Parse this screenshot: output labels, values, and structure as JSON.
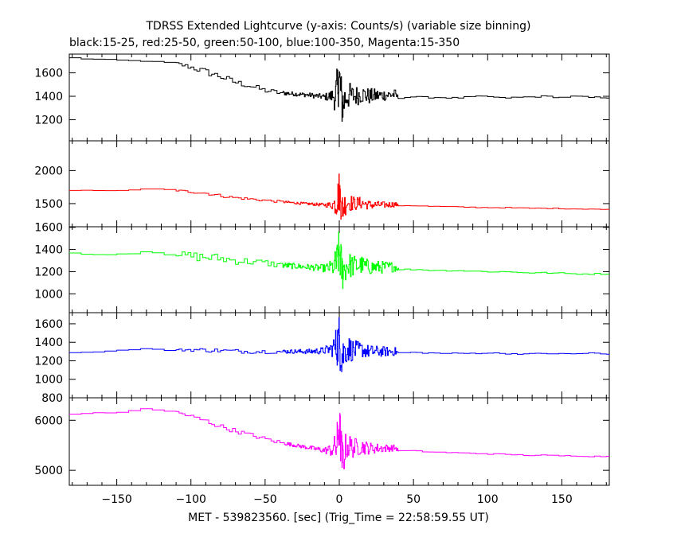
{
  "header": {
    "title": "TDRSS Extended Lightcurve (y-axis: Counts/s) (variable size binning)",
    "legend_line": "black:15-25, red:25-50, green:50-100, blue:100-350, Magenta:15-350"
  },
  "chart_data": {
    "type": "line",
    "title": "TDRSS Extended Lightcurve (y-axis: Counts/s) (variable size binning)",
    "xlabel": "MET - 539823560. [sec] (Trig_Time = 22:58:59.55 UT)",
    "ylabel": "",
    "xlim": [
      -182,
      182
    ],
    "x_ticks": [
      -150,
      -100,
      -50,
      0,
      50,
      100,
      150
    ],
    "x_tick_labels": [
      "−150",
      "−100",
      "−50",
      "0",
      "50",
      "100",
      "150"
    ],
    "grid": false,
    "panels": [
      {
        "name": "15-25",
        "color": "#000000",
        "ylim": [
          1020,
          1760
        ],
        "y_ticks": [
          1200,
          1400,
          1600
        ],
        "y_tick_labels": [
          "1200",
          "1400",
          "1600"
        ],
        "x": [
          -180,
          -170,
          -160,
          -150,
          -140,
          -130,
          -120,
          -110,
          -100,
          -90,
          -80,
          -70,
          -60,
          -50,
          -40,
          -30,
          -20,
          -10,
          -5,
          -2,
          0,
          2,
          5,
          10,
          15,
          20,
          30,
          38,
          40,
          50,
          60,
          70,
          80,
          90,
          100,
          110,
          120,
          130,
          140,
          150,
          160,
          170,
          180
        ],
        "values": [
          1730,
          1720,
          1715,
          1710,
          1705,
          1700,
          1690,
          1680,
          1650,
          1610,
          1570,
          1520,
          1490,
          1450,
          1430,
          1420,
          1410,
          1395,
          1400,
          1420,
          1560,
          1320,
          1410,
          1400,
          1420,
          1400,
          1410,
          1415,
          1385,
          1395,
          1390,
          1390,
          1385,
          1395,
          1400,
          1385,
          1390,
          1395,
          1400,
          1390,
          1400,
          1390,
          1390
        ],
        "noise": [
          3,
          3,
          3,
          3,
          3,
          3,
          8,
          15,
          22,
          30,
          28,
          26,
          24,
          22,
          20,
          18,
          20,
          25,
          60,
          180,
          220,
          200,
          130,
          90,
          80,
          70,
          50,
          45,
          6,
          6,
          6,
          6,
          6,
          6,
          6,
          6,
          6,
          6,
          6,
          6,
          6,
          6,
          6
        ]
      },
      {
        "name": "25-50",
        "color": "#ff0000",
        "ylim": [
          1150,
          2450
        ],
        "y_ticks": [
          1500,
          2000
        ],
        "y_tick_labels": [
          "1500",
          "2000"
        ],
        "x": [
          -180,
          -170,
          -160,
          -150,
          -140,
          -130,
          -120,
          -110,
          -100,
          -90,
          -80,
          -70,
          -60,
          -50,
          -40,
          -30,
          -20,
          -10,
          -5,
          -2,
          0,
          2,
          5,
          10,
          15,
          20,
          30,
          38,
          40,
          50,
          60,
          70,
          80,
          90,
          100,
          110,
          120,
          130,
          140,
          150,
          160,
          170,
          180
        ],
        "values": [
          1700,
          1700,
          1695,
          1700,
          1700,
          1720,
          1720,
          1700,
          1680,
          1660,
          1620,
          1590,
          1570,
          1550,
          1530,
          1510,
          1495,
          1480,
          1480,
          1500,
          1700,
          1420,
          1530,
          1500,
          1510,
          1480,
          1480,
          1490,
          1470,
          1470,
          1460,
          1455,
          1450,
          1445,
          1440,
          1440,
          1435,
          1430,
          1430,
          1425,
          1420,
          1420,
          1410
        ],
        "noise": [
          3,
          3,
          3,
          3,
          3,
          3,
          5,
          12,
          20,
          24,
          22,
          22,
          20,
          20,
          18,
          18,
          20,
          25,
          60,
          200,
          320,
          260,
          150,
          110,
          90,
          70,
          50,
          40,
          6,
          6,
          6,
          6,
          6,
          6,
          6,
          6,
          6,
          6,
          6,
          6,
          6,
          6,
          6
        ]
      },
      {
        "name": "50-100",
        "color": "#00ff00",
        "ylim": [
          830,
          1605
        ],
        "y_ticks": [
          1000,
          1200,
          1400,
          1600
        ],
        "y_tick_labels": [
          "1000",
          "1200",
          "1400",
          "1600"
        ],
        "x": [
          -180,
          -170,
          -160,
          -150,
          -140,
          -130,
          -120,
          -110,
          -100,
          -90,
          -80,
          -70,
          -60,
          -50,
          -40,
          -30,
          -20,
          -10,
          -5,
          -2,
          0,
          2,
          5,
          10,
          15,
          20,
          30,
          38,
          40,
          50,
          60,
          70,
          80,
          90,
          100,
          110,
          120,
          130,
          140,
          150,
          160,
          170,
          180
        ],
        "values": [
          1370,
          1360,
          1350,
          1360,
          1360,
          1380,
          1370,
          1360,
          1340,
          1330,
          1320,
          1300,
          1290,
          1280,
          1260,
          1250,
          1240,
          1230,
          1240,
          1260,
          1380,
          1200,
          1260,
          1250,
          1260,
          1240,
          1240,
          1245,
          1220,
          1220,
          1215,
          1210,
          1210,
          1205,
          1200,
          1200,
          1195,
          1190,
          1190,
          1185,
          1180,
          1180,
          1180
        ],
        "noise": [
          3,
          3,
          3,
          3,
          3,
          3,
          5,
          20,
          40,
          45,
          40,
          35,
          32,
          30,
          28,
          26,
          28,
          35,
          70,
          160,
          220,
          190,
          130,
          100,
          85,
          70,
          55,
          45,
          6,
          6,
          6,
          6,
          6,
          6,
          6,
          6,
          6,
          6,
          6,
          6,
          6,
          6,
          6
        ]
      },
      {
        "name": "100-350",
        "color": "#0000ff",
        "ylim": [
          800,
          1720
        ],
        "y_ticks": [
          800,
          1000,
          1200,
          1400,
          1600
        ],
        "y_tick_labels": [
          "800",
          "1000",
          "1200",
          "1400",
          "1600"
        ],
        "x": [
          -180,
          -170,
          -160,
          -150,
          -140,
          -130,
          -120,
          -110,
          -100,
          -90,
          -80,
          -70,
          -60,
          -50,
          -40,
          -30,
          -20,
          -10,
          -5,
          -2,
          0,
          2,
          5,
          10,
          15,
          20,
          30,
          38,
          40,
          50,
          60,
          70,
          80,
          90,
          100,
          110,
          120,
          130,
          140,
          150,
          160,
          170,
          180
        ],
        "values": [
          1290,
          1290,
          1300,
          1310,
          1320,
          1330,
          1320,
          1315,
          1320,
          1315,
          1310,
          1305,
          1300,
          1300,
          1300,
          1300,
          1300,
          1310,
          1330,
          1360,
          1420,
          1250,
          1340,
          1310,
          1320,
          1300,
          1300,
          1300,
          1285,
          1290,
          1285,
          1280,
          1280,
          1280,
          1285,
          1280,
          1275,
          1275,
          1280,
          1275,
          1275,
          1285,
          1270
        ],
        "noise": [
          3,
          3,
          3,
          3,
          3,
          3,
          4,
          10,
          18,
          22,
          22,
          22,
          22,
          22,
          22,
          22,
          28,
          40,
          80,
          220,
          300,
          250,
          160,
          110,
          85,
          70,
          55,
          45,
          6,
          6,
          6,
          6,
          6,
          6,
          6,
          6,
          6,
          6,
          6,
          6,
          6,
          6,
          6
        ]
      },
      {
        "name": "15-350",
        "color": "#ff00ff",
        "ylim": [
          4700,
          6450
        ],
        "y_ticks": [
          5000,
          6000
        ],
        "y_tick_labels": [
          "5000",
          "6000"
        ],
        "x": [
          -180,
          -170,
          -160,
          -150,
          -140,
          -130,
          -120,
          -110,
          -100,
          -90,
          -80,
          -70,
          -60,
          -50,
          -40,
          -30,
          -20,
          -10,
          -5,
          -2,
          0,
          2,
          5,
          10,
          15,
          20,
          30,
          38,
          40,
          50,
          60,
          70,
          80,
          90,
          100,
          110,
          120,
          130,
          140,
          150,
          160,
          170,
          180
        ],
        "values": [
          6120,
          6140,
          6150,
          6150,
          6180,
          6230,
          6210,
          6170,
          6080,
          5990,
          5880,
          5790,
          5710,
          5630,
          5560,
          5500,
          5450,
          5400,
          5410,
          5450,
          5900,
          5200,
          5500,
          5450,
          5480,
          5440,
          5440,
          5450,
          5390,
          5390,
          5370,
          5360,
          5350,
          5340,
          5330,
          5320,
          5310,
          5300,
          5300,
          5290,
          5290,
          5280,
          5280
        ],
        "noise": [
          5,
          5,
          5,
          5,
          5,
          5,
          10,
          25,
          45,
          50,
          48,
          45,
          42,
          40,
          38,
          36,
          40,
          60,
          140,
          350,
          520,
          430,
          280,
          200,
          160,
          120,
          80,
          60,
          10,
          10,
          10,
          10,
          10,
          10,
          10,
          10,
          10,
          10,
          10,
          10,
          10,
          10,
          10
        ]
      }
    ]
  }
}
